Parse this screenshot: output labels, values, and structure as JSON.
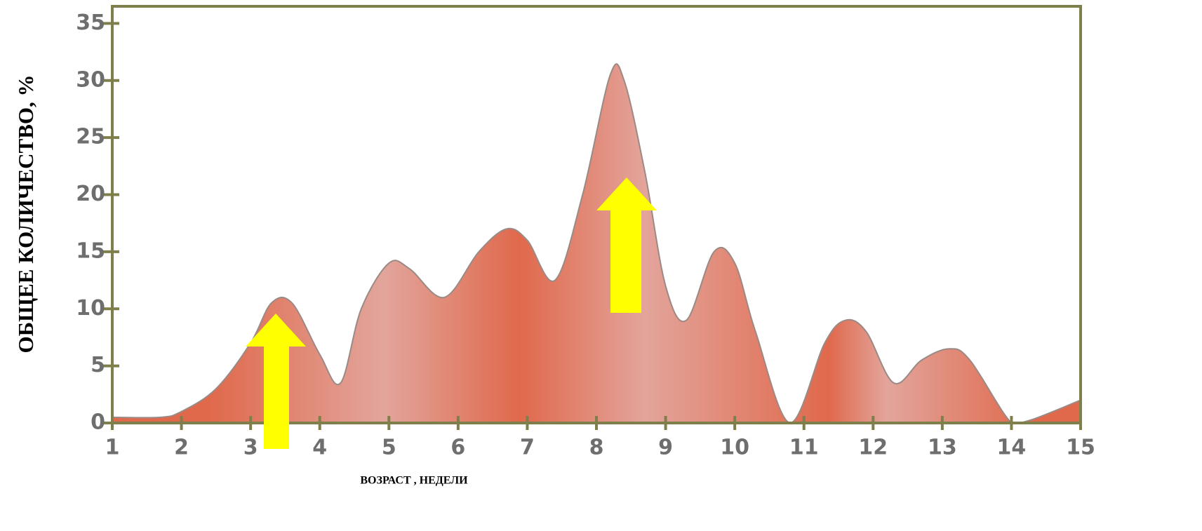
{
  "chart_data": {
    "type": "area",
    "y_label": "ОБЩЕЕ КОЛИЧЕСТВО, %",
    "x_label": "ВОЗРАСТ , НЕДЕЛИ",
    "x": [
      1,
      1.7,
      2,
      2.5,
      3,
      3.3,
      3.6,
      4,
      4.3,
      4.6,
      5,
      5.3,
      5.8,
      6.3,
      6.7,
      7,
      7.4,
      7.8,
      8.2,
      8.4,
      8.7,
      9,
      9.3,
      9.7,
      10,
      10.3,
      10.8,
      11.3,
      11.6,
      11.9,
      12.3,
      12.7,
      13.1,
      13.4,
      14,
      14.3,
      15
    ],
    "values": [
      0.5,
      0.5,
      1,
      3,
      7,
      10.5,
      10.5,
      6,
      3.5,
      10,
      14,
      13.5,
      11,
      15,
      17,
      16,
      12.5,
      20,
      30.5,
      30,
      22,
      12,
      9,
      15,
      14,
      8,
      0,
      7,
      9,
      8,
      3.5,
      5.5,
      6.5,
      5.5,
      0,
      0.3,
      2
    ],
    "color": "#e0694c",
    "xlim": [
      1,
      15
    ],
    "xticks": [
      1,
      2,
      3,
      4,
      5,
      6,
      7,
      8,
      9,
      10,
      11,
      12,
      13,
      14,
      15
    ],
    "ylim": [
      0,
      36.5
    ],
    "yticks": [
      0,
      5,
      10,
      15,
      20,
      25,
      30,
      35
    ]
  }
}
